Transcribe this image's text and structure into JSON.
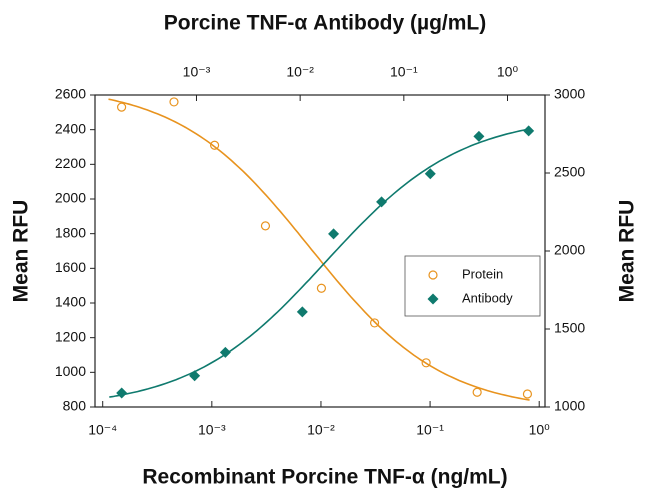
{
  "chart_data": {
    "type": "scatter",
    "title": "Porcine TNF-α Antibody (µg/mL)",
    "xlabel": "Recombinant Porcine TNF-α (ng/mL)",
    "ylabel": "Mean RFU",
    "y2label": "Mean RFU",
    "xscale": "log",
    "x2scale": "log",
    "xlim": [
      8.5e-05,
      1.13
    ],
    "xticks": [
      {
        "value": 0.0001,
        "label": "10⁻⁴"
      },
      {
        "value": 0.001,
        "label": "10⁻³"
      },
      {
        "value": 0.01,
        "label": "10⁻²"
      },
      {
        "value": 0.1,
        "label": "10⁻¹"
      },
      {
        "value": 1,
        "label": "10⁰"
      }
    ],
    "x2lim": [
      0.000105,
      2.3
    ],
    "x2ticks": [
      {
        "value": 0.001,
        "label": "10⁻³"
      },
      {
        "value": 0.01,
        "label": "10⁻²"
      },
      {
        "value": 0.1,
        "label": "10⁻¹"
      },
      {
        "value": 1,
        "label": "10⁰"
      }
    ],
    "ylim": [
      800,
      2600
    ],
    "yticks": [
      800,
      1000,
      1200,
      1400,
      1600,
      1800,
      2000,
      2200,
      2400,
      2600
    ],
    "y2lim": [
      1000,
      3000
    ],
    "y2ticks": [
      1000,
      1500,
      2000,
      2500,
      3000
    ],
    "legend": "center-right",
    "series": [
      {
        "name": "Protein",
        "color": "#e8931e",
        "marker": "open-circle",
        "axis": "y",
        "xaxis": "x",
        "x": [
          0.000149,
          0.00045,
          0.00106,
          0.0031,
          0.0101,
          0.031,
          0.092,
          0.27,
          0.78
        ],
        "values": [
          2530,
          2560,
          2310,
          1845,
          1485,
          1285,
          1055,
          885,
          875
        ]
      },
      {
        "name": "Antibody",
        "color": "#0f7a6e",
        "marker": "diamond",
        "axis": "y2",
        "xaxis": "x2",
        "x": [
          0.00019,
          0.00096,
          0.0019,
          0.0105,
          0.021,
          0.061,
          0.18,
          0.53,
          1.6
        ],
        "values": [
          1090,
          1200,
          1350,
          1610,
          2110,
          2315,
          2495,
          2735,
          2770
        ]
      }
    ]
  }
}
